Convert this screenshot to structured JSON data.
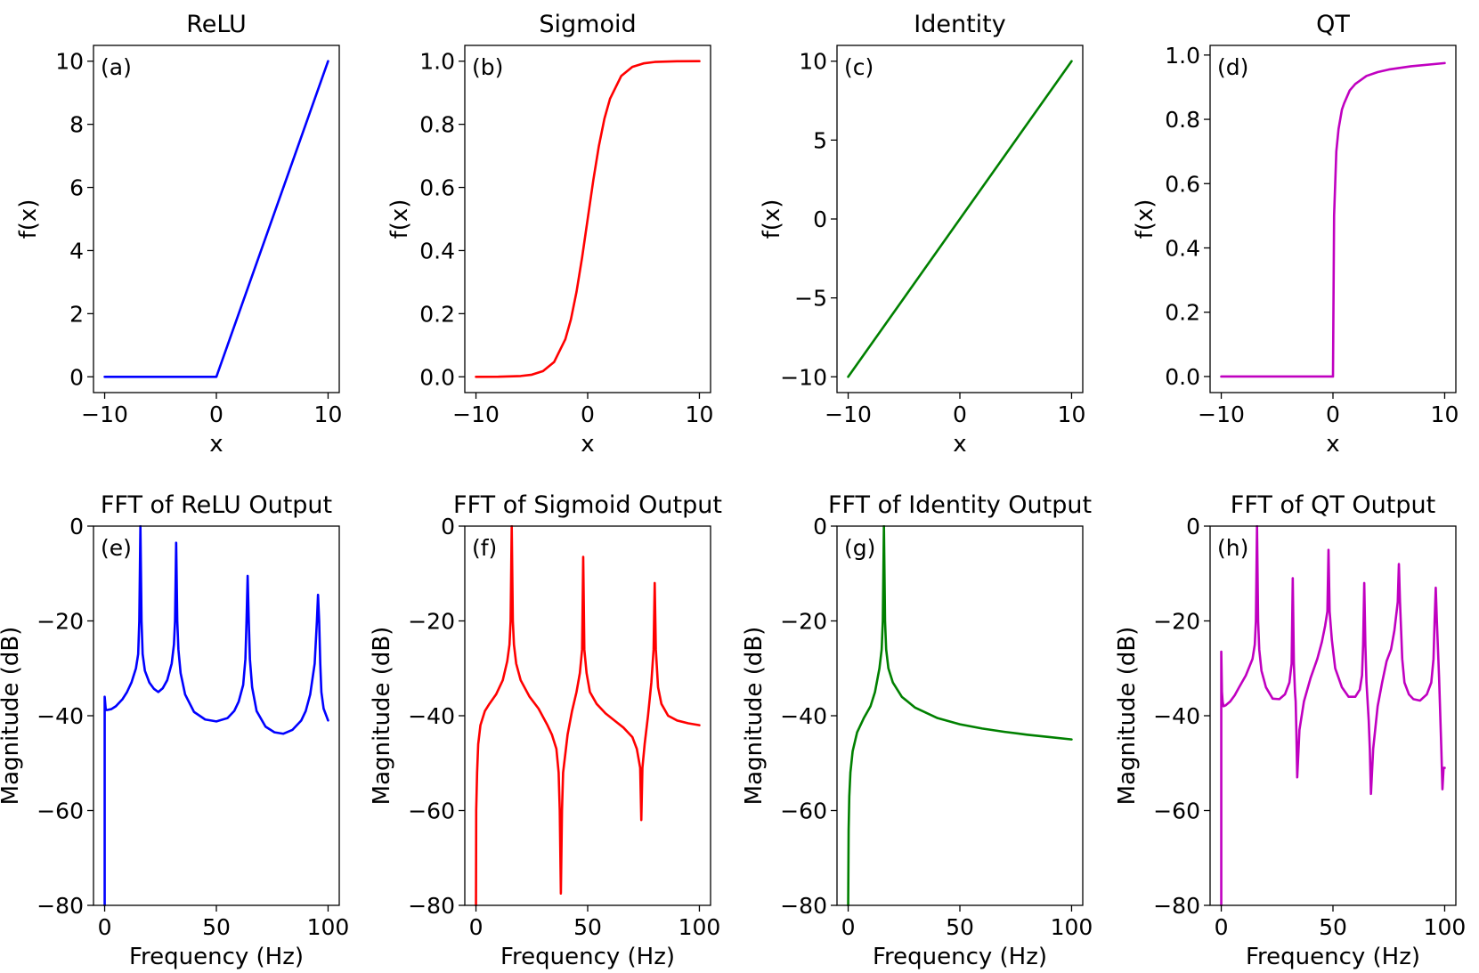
{
  "chart_data": [
    {
      "type": "line",
      "panel_label": "(a)",
      "title": "ReLU",
      "xlabel": "x",
      "ylabel": "f(x)",
      "color": "#0000ff",
      "xlim": [
        -10,
        10
      ],
      "ylim": [
        0,
        10
      ],
      "xticks": [
        -10,
        0,
        10
      ],
      "xtick_labels": [
        "−10",
        "0",
        "10"
      ],
      "yticks": [
        0,
        2,
        4,
        6,
        8,
        10
      ],
      "ytick_labels": [
        "0",
        "2",
        "4",
        "6",
        "8",
        "10"
      ],
      "series": [
        {
          "x": [
            -10,
            0,
            10
          ],
          "y": [
            0,
            0,
            10
          ]
        }
      ]
    },
    {
      "type": "line",
      "panel_label": "(b)",
      "title": "Sigmoid",
      "xlabel": "x",
      "ylabel": "f(x)",
      "color": "#ff0000",
      "xlim": [
        -10,
        10
      ],
      "ylim": [
        0,
        1
      ],
      "xticks": [
        -10,
        0,
        10
      ],
      "xtick_labels": [
        "−10",
        "0",
        "10"
      ],
      "yticks": [
        0,
        0.2,
        0.4,
        0.6,
        0.8,
        1.0
      ],
      "ytick_labels": [
        "0.0",
        "0.2",
        "0.4",
        "0.6",
        "0.8",
        "1.0"
      ],
      "series": [
        {
          "x": [
            -10,
            -8,
            -6,
            -5,
            -4,
            -3,
            -2,
            -1.5,
            -1,
            -0.5,
            0,
            0.5,
            1,
            1.5,
            2,
            3,
            4,
            5,
            6,
            8,
            10
          ],
          "y": [
            0.0,
            0.0003,
            0.0025,
            0.0067,
            0.018,
            0.047,
            0.119,
            0.182,
            0.269,
            0.378,
            0.5,
            0.622,
            0.731,
            0.818,
            0.881,
            0.953,
            0.982,
            0.993,
            0.9975,
            0.9997,
            1.0
          ]
        }
      ]
    },
    {
      "type": "line",
      "panel_label": "(c)",
      "title": "Identity",
      "xlabel": "x",
      "ylabel": "f(x)",
      "color": "#008000",
      "xlim": [
        -10,
        10
      ],
      "ylim": [
        -10,
        10
      ],
      "xticks": [
        -10,
        0,
        10
      ],
      "xtick_labels": [
        "−10",
        "0",
        "10"
      ],
      "yticks": [
        -10,
        -5,
        0,
        5,
        10
      ],
      "ytick_labels": [
        "−10",
        "−5",
        "0",
        "5",
        "10"
      ],
      "series": [
        {
          "x": [
            -10,
            10
          ],
          "y": [
            -10,
            10
          ]
        }
      ]
    },
    {
      "type": "line",
      "panel_label": "(d)",
      "title": "QT",
      "xlabel": "x",
      "ylabel": "f(x)",
      "color": "#c000c0",
      "xlim": [
        -10,
        10
      ],
      "ylim": [
        0,
        0.98
      ],
      "xticks": [
        -10,
        0,
        10
      ],
      "xtick_labels": [
        "−10",
        "0",
        "10"
      ],
      "yticks": [
        0,
        0.2,
        0.4,
        0.6,
        0.8,
        1.0
      ],
      "ytick_labels": [
        "0.0",
        "0.2",
        "0.4",
        "0.6",
        "0.8",
        "1.0"
      ],
      "series": [
        {
          "x": [
            -10,
            0,
            0.001,
            0.1,
            0.3,
            0.5,
            0.8,
            1,
            1.5,
            2,
            3,
            4,
            5,
            7,
            10
          ],
          "y": [
            0,
            0,
            0.0,
            0.5,
            0.7,
            0.77,
            0.83,
            0.85,
            0.89,
            0.91,
            0.935,
            0.947,
            0.955,
            0.965,
            0.975
          ]
        }
      ]
    },
    {
      "type": "line",
      "panel_label": "(e)",
      "title": "FFT of ReLU Output",
      "xlabel": "Frequency (Hz)",
      "ylabel": "Magnitude (dB)",
      "color": "#0000ff",
      "xlim": [
        0,
        100
      ],
      "ylim": [
        -80,
        0
      ],
      "xticks": [
        0,
        50,
        100
      ],
      "xtick_labels": [
        "0",
        "50",
        "100"
      ],
      "yticks": [
        -80,
        -60,
        -40,
        -20,
        0
      ],
      "ytick_labels": [
        "−80",
        "−60",
        "−40",
        "−20",
        "0"
      ],
      "series": [
        {
          "x": [
            0,
            0,
            0.5,
            1,
            3,
            5,
            8,
            10,
            12,
            14,
            15,
            15.5,
            16,
            16.5,
            17,
            18,
            20,
            22,
            24,
            26,
            28,
            30,
            31,
            31.5,
            32,
            32.5,
            33,
            34,
            36,
            40,
            45,
            50,
            55,
            58,
            60,
            62,
            63,
            63.5,
            64,
            64.5,
            65,
            66,
            68,
            72,
            76,
            80,
            84,
            88,
            90,
            92,
            94,
            95,
            95.5,
            96,
            96.5,
            97,
            98,
            100
          ],
          "y": [
            -80,
            -36,
            -38.8,
            -38.8,
            -38.6,
            -38,
            -36.5,
            -35,
            -33,
            -30,
            -27,
            -20,
            0,
            -20,
            -27,
            -30.5,
            -33,
            -34.3,
            -35,
            -34.2,
            -32.5,
            -29,
            -25,
            -20,
            -3.5,
            -20,
            -26,
            -31,
            -35.5,
            -39.2,
            -40.8,
            -41.2,
            -40.5,
            -39,
            -37,
            -33.5,
            -28,
            -20,
            -10.5,
            -20,
            -28,
            -34,
            -39,
            -42.3,
            -43.5,
            -43.8,
            -43,
            -41,
            -39,
            -35.5,
            -29,
            -20,
            -14.5,
            -20,
            -29,
            -35,
            -38.5,
            -41
          ]
        }
      ]
    },
    {
      "type": "line",
      "panel_label": "(f)",
      "title": "FFT of Sigmoid Output",
      "xlabel": "Frequency (Hz)",
      "ylabel": "Magnitude (dB)",
      "color": "#ff0000",
      "xlim": [
        0,
        100
      ],
      "ylim": [
        -80,
        0
      ],
      "xticks": [
        0,
        50,
        100
      ],
      "xtick_labels": [
        "0",
        "50",
        "100"
      ],
      "yticks": [
        -80,
        -60,
        -40,
        -20,
        0
      ],
      "ytick_labels": [
        "−80",
        "−60",
        "−40",
        "−20",
        "0"
      ],
      "series": [
        {
          "x": [
            0,
            0.1,
            0.5,
            1,
            2,
            4,
            6,
            9,
            12,
            14,
            15,
            15.5,
            16,
            16.5,
            17,
            18,
            20,
            24,
            28,
            32,
            34,
            36,
            37,
            37.5,
            38,
            38.5,
            39,
            41,
            43,
            45,
            46.5,
            47.5,
            48,
            48.5,
            49.5,
            51,
            54,
            58,
            62,
            66,
            70,
            72,
            73.5,
            74,
            74.5,
            75.5,
            77,
            78.5,
            79.5,
            80,
            80.5,
            81.5,
            83,
            86,
            90,
            95,
            100
          ],
          "y": [
            -80,
            -60,
            -52,
            -46,
            -42,
            -39,
            -37.5,
            -35.5,
            -32.5,
            -28.5,
            -25,
            -20,
            0,
            -20,
            -25,
            -29,
            -32.5,
            -36,
            -38.5,
            -42,
            -44,
            -47,
            -52,
            -60,
            -77.5,
            -60,
            -52,
            -44,
            -39,
            -35,
            -31,
            -26,
            -6.5,
            -26,
            -31,
            -35,
            -37.5,
            -39.5,
            -41,
            -42.5,
            -44.5,
            -47,
            -51,
            -62,
            -51,
            -46,
            -40,
            -33,
            -26,
            -12,
            -26,
            -34,
            -37.5,
            -40,
            -41,
            -41.6,
            -42
          ]
        }
      ]
    },
    {
      "type": "line",
      "panel_label": "(g)",
      "title": "FFT of Identity Output",
      "xlabel": "Frequency (Hz)",
      "ylabel": "Magnitude (dB)",
      "color": "#008000",
      "xlim": [
        0,
        100
      ],
      "ylim": [
        -80,
        0
      ],
      "xticks": [
        0,
        50,
        100
      ],
      "xtick_labels": [
        "0",
        "50",
        "100"
      ],
      "yticks": [
        -80,
        -60,
        -40,
        -20,
        0
      ],
      "ytick_labels": [
        "−80",
        "−60",
        "−40",
        "−20",
        "0"
      ],
      "series": [
        {
          "x": [
            0,
            0.2,
            0.5,
            1,
            2,
            4,
            7,
            10,
            12,
            14,
            15,
            15.5,
            16,
            16.5,
            17,
            18,
            20,
            24,
            30,
            40,
            50,
            60,
            70,
            80,
            90,
            100
          ],
          "y": [
            -80,
            -64,
            -57,
            -52,
            -47.5,
            -43.5,
            -40.5,
            -38,
            -35,
            -30,
            -26,
            -20,
            0,
            -20,
            -26,
            -30,
            -33,
            -36,
            -38.3,
            -40.5,
            -41.8,
            -42.7,
            -43.4,
            -44,
            -44.5,
            -45
          ]
        }
      ]
    },
    {
      "type": "line",
      "panel_label": "(h)",
      "title": "FFT of QT Output",
      "xlabel": "Frequency (Hz)",
      "ylabel": "Magnitude (dB)",
      "color": "#c000c0",
      "xlim": [
        0,
        100
      ],
      "ylim": [
        -80,
        0
      ],
      "xticks": [
        0,
        50,
        100
      ],
      "xtick_labels": [
        "0",
        "50",
        "100"
      ],
      "yticks": [
        -80,
        -60,
        -40,
        -20,
        0
      ],
      "ytick_labels": [
        "−80",
        "−60",
        "−40",
        "−20",
        "0"
      ],
      "series": [
        {
          "x": [
            0,
            0,
            0.3,
            0.6,
            1,
            2,
            4,
            6,
            8,
            11,
            14,
            15,
            15.5,
            16,
            16.5,
            17,
            18,
            20,
            23,
            26,
            28.5,
            30.5,
            31.5,
            32,
            32.5,
            33,
            33.3,
            33.6,
            34,
            35,
            37,
            40,
            43,
            45,
            46.5,
            47.5,
            48,
            48.5,
            49.5,
            51,
            54,
            57,
            60,
            62,
            63,
            63.5,
            64,
            64.5,
            65,
            66,
            66.5,
            67,
            68,
            70,
            72,
            74,
            76,
            77.5,
            79,
            79.5,
            80,
            80.5,
            81,
            82,
            84,
            86,
            89,
            92,
            94,
            95,
            95.5,
            96,
            96.5,
            97.5,
            98.5,
            99,
            99.5,
            100
          ],
          "y": [
            -80,
            -26.5,
            -35,
            -37,
            -38,
            -37.8,
            -37,
            -35.7,
            -34,
            -31.5,
            -28,
            -25,
            -20,
            0,
            -20,
            -26,
            -30.5,
            -34,
            -36.4,
            -36.5,
            -35.5,
            -33,
            -29,
            -11,
            -29,
            -35,
            -37,
            -43,
            -53,
            -43,
            -37,
            -32,
            -28,
            -24.5,
            -21,
            -18,
            -5,
            -18,
            -24,
            -30,
            -34,
            -36,
            -36,
            -34.5,
            -31.5,
            -25,
            -12,
            -25,
            -33,
            -41,
            -47,
            -56.5,
            -47,
            -38,
            -33,
            -28.5,
            -26,
            -22,
            -16,
            -8,
            -16,
            -22,
            -28,
            -33,
            -35.5,
            -36.5,
            -36.8,
            -35.5,
            -33,
            -28,
            -20,
            -13,
            -20,
            -32,
            -47,
            -55.5,
            -51,
            -51
          ]
        }
      ]
    }
  ]
}
